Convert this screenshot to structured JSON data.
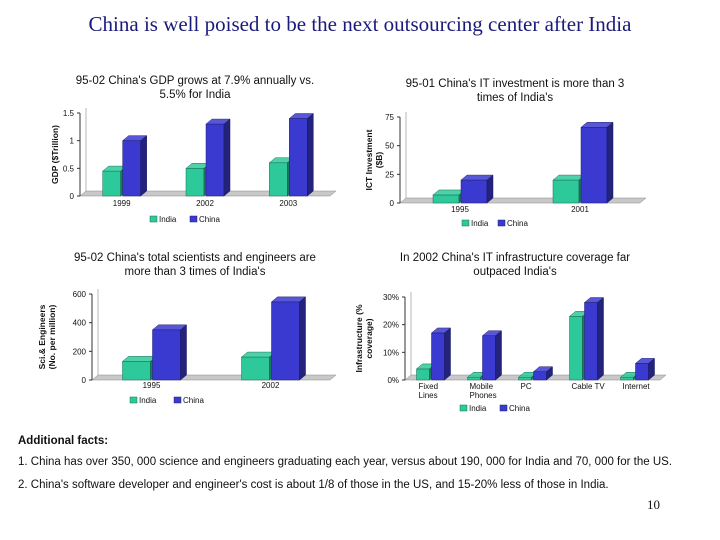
{
  "slide": {
    "title": "China is well poised to be the next outsourcing center after India",
    "additional_facts_heading": "Additional facts:",
    "facts": [
      "1. China has over 350, 000 science and engineers graduating each year, versus about 190, 000 for India and 70, 000 for the US.",
      "2. China's software developer and engineer's cost is about 1/8 of those in the US, and 15-20% less of those in India."
    ],
    "page_number": "10"
  },
  "colors": {
    "india": "#2ec99a",
    "china": "#3a3ad0"
  },
  "chart_data": [
    {
      "type": "bar",
      "title": "95-02 China's GDP grows at 7.9% annually vs. 5.5% for India",
      "title_lines": [
        "95-02 China's GDP grows at 7.9% annually vs.",
        "5.5% for India"
      ],
      "ylabel": "GDP ($Trillion)",
      "xlabel": "",
      "categories": [
        "1999",
        "2002",
        "2003"
      ],
      "series": [
        {
          "name": "India",
          "values": [
            0.45,
            0.5,
            0.6
          ]
        },
        {
          "name": "China",
          "values": [
            1.0,
            1.3,
            1.4
          ]
        }
      ],
      "ylim": [
        0,
        1.5
      ],
      "yticks": [
        0,
        0.5,
        1,
        1.5
      ],
      "ytick_labels": [
        "0",
        "0.5",
        "1",
        "1.5"
      ],
      "legend": [
        "India",
        "China"
      ],
      "legend_position": "bottom"
    },
    {
      "type": "bar",
      "title": "95-01 China's IT investment is more than 3 times of India's",
      "title_lines": [
        "95-01 China's IT investment is more than 3",
        "times of India's"
      ],
      "ylabel": "ICT Investment ($B)",
      "ylabel_lines": [
        "ICT Investment",
        "($B)"
      ],
      "xlabel": "",
      "categories": [
        "1995",
        "2001"
      ],
      "series": [
        {
          "name": "India",
          "values": [
            7,
            20
          ]
        },
        {
          "name": "China",
          "values": [
            20,
            66
          ]
        }
      ],
      "ylim": [
        0,
        75
      ],
      "yticks": [
        0,
        25,
        50,
        75
      ],
      "ytick_labels": [
        "0",
        "25",
        "50",
        "75"
      ],
      "legend": [
        "India",
        "China"
      ],
      "legend_position": "bottom"
    },
    {
      "type": "bar",
      "title": "95-02 China's total scientists and engineers are more than 3 times of India's",
      "title_lines": [
        "95-02 China's total scientists and engineers are",
        "more than 3 times of India's"
      ],
      "ylabel": "Sci.& Engineers (No. per million)",
      "ylabel_lines": [
        "Sci.& Engineers",
        "(No. per million)"
      ],
      "xlabel": "",
      "categories": [
        "1995",
        "2002"
      ],
      "series": [
        {
          "name": "India",
          "values": [
            130,
            160
          ]
        },
        {
          "name": "China",
          "values": [
            350,
            545
          ]
        }
      ],
      "ylim": [
        0,
        600
      ],
      "yticks": [
        0,
        200,
        400,
        600
      ],
      "ytick_labels": [
        "0",
        "200",
        "400",
        "600"
      ],
      "legend": [
        "India",
        "China"
      ],
      "legend_position": "bottom"
    },
    {
      "type": "bar",
      "title": "In 2002 China's IT infrastructure coverage far outpaced India's",
      "title_lines": [
        "In 2002 China's IT infrastructure coverage far",
        "outpaced India's"
      ],
      "ylabel": "Infrastructure (% coverage)",
      "ylabel_lines": [
        "Infrastructure (%",
        "coverage)"
      ],
      "xlabel": "",
      "categories": [
        "Fixed Lines",
        "Mobile Phones",
        "PC",
        "Cable TV",
        "Internet"
      ],
      "category_lines": [
        [
          "Fixed",
          "Lines"
        ],
        [
          "Mobile",
          "Phones"
        ],
        [
          "PC"
        ],
        [
          "Cable TV"
        ],
        [
          "Internet"
        ]
      ],
      "series": [
        {
          "name": "India",
          "values": [
            4,
            1,
            1,
            23,
            1
          ]
        },
        {
          "name": "China",
          "values": [
            17,
            16,
            3,
            28,
            6
          ]
        }
      ],
      "ylim": [
        0,
        30
      ],
      "yticks": [
        0,
        10,
        20,
        30
      ],
      "ytick_labels": [
        "0%",
        "10%",
        "20%",
        "30%"
      ],
      "legend": [
        "India",
        "China"
      ],
      "legend_position": "bottom"
    }
  ]
}
